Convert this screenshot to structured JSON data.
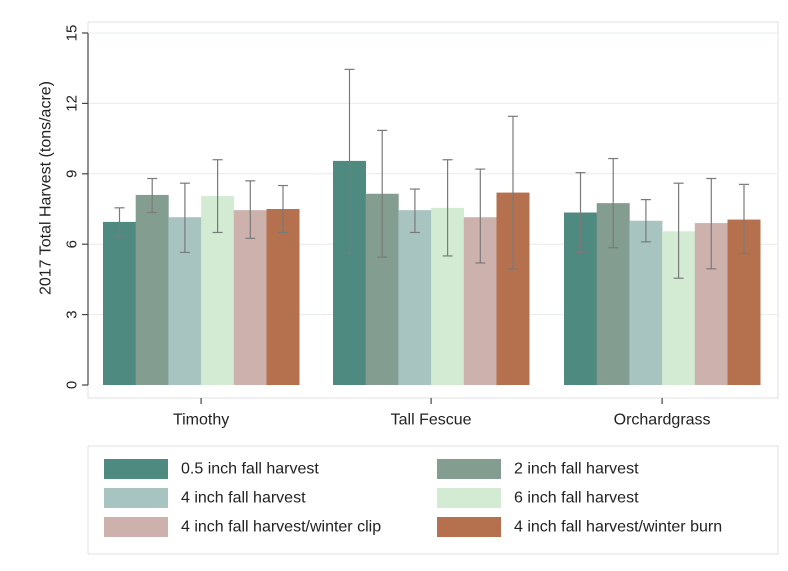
{
  "chart_data": {
    "type": "bar",
    "title": "",
    "xlabel": "",
    "ylabel": "2017 Total Harvest (tons/acre)",
    "ylim": [
      0,
      15
    ],
    "yticks": [
      "0",
      "3",
      "6",
      "9",
      "12",
      "15"
    ],
    "grid": true,
    "legend_placement": "bottom",
    "categories": [
      "Timothy",
      "Tall Fescue",
      "Orchardgrass"
    ],
    "series": [
      {
        "name": "0.5 inch fall harvest",
        "color": "#4f8a80",
        "values": [
          6.95,
          9.55,
          7.35
        ],
        "err_low": [
          6.35,
          5.6,
          5.65
        ],
        "err_high": [
          7.55,
          13.45,
          9.05
        ]
      },
      {
        "name": "2 inch fall harvest",
        "color": "#839e91",
        "values": [
          8.1,
          8.15,
          7.75
        ],
        "err_low": [
          7.35,
          5.45,
          5.85
        ],
        "err_high": [
          8.8,
          10.85,
          9.65
        ]
      },
      {
        "name": "4 inch fall harvest",
        "color": "#a7c4c0",
        "values": [
          7.15,
          7.45,
          7.0
        ],
        "err_low": [
          5.65,
          6.5,
          6.1
        ],
        "err_high": [
          8.6,
          8.35,
          7.9
        ]
      },
      {
        "name": "6 inch fall harvest",
        "color": "#d3ebd2",
        "values": [
          8.05,
          7.55,
          6.55
        ],
        "err_low": [
          6.5,
          5.5,
          4.55
        ],
        "err_high": [
          9.6,
          9.6,
          8.6
        ]
      },
      {
        "name": "4 inch fall harvest/winter clip",
        "color": "#cdb1ad",
        "values": [
          7.45,
          7.15,
          6.9
        ],
        "err_low": [
          6.25,
          5.2,
          4.95
        ],
        "err_high": [
          8.7,
          9.2,
          8.8
        ]
      },
      {
        "name": "4 inch fall harvest/winter burn",
        "color": "#b5704e",
        "values": [
          7.5,
          8.2,
          7.05
        ],
        "err_low": [
          6.5,
          4.95,
          5.6
        ],
        "err_high": [
          8.5,
          11.45,
          8.55
        ]
      }
    ]
  }
}
